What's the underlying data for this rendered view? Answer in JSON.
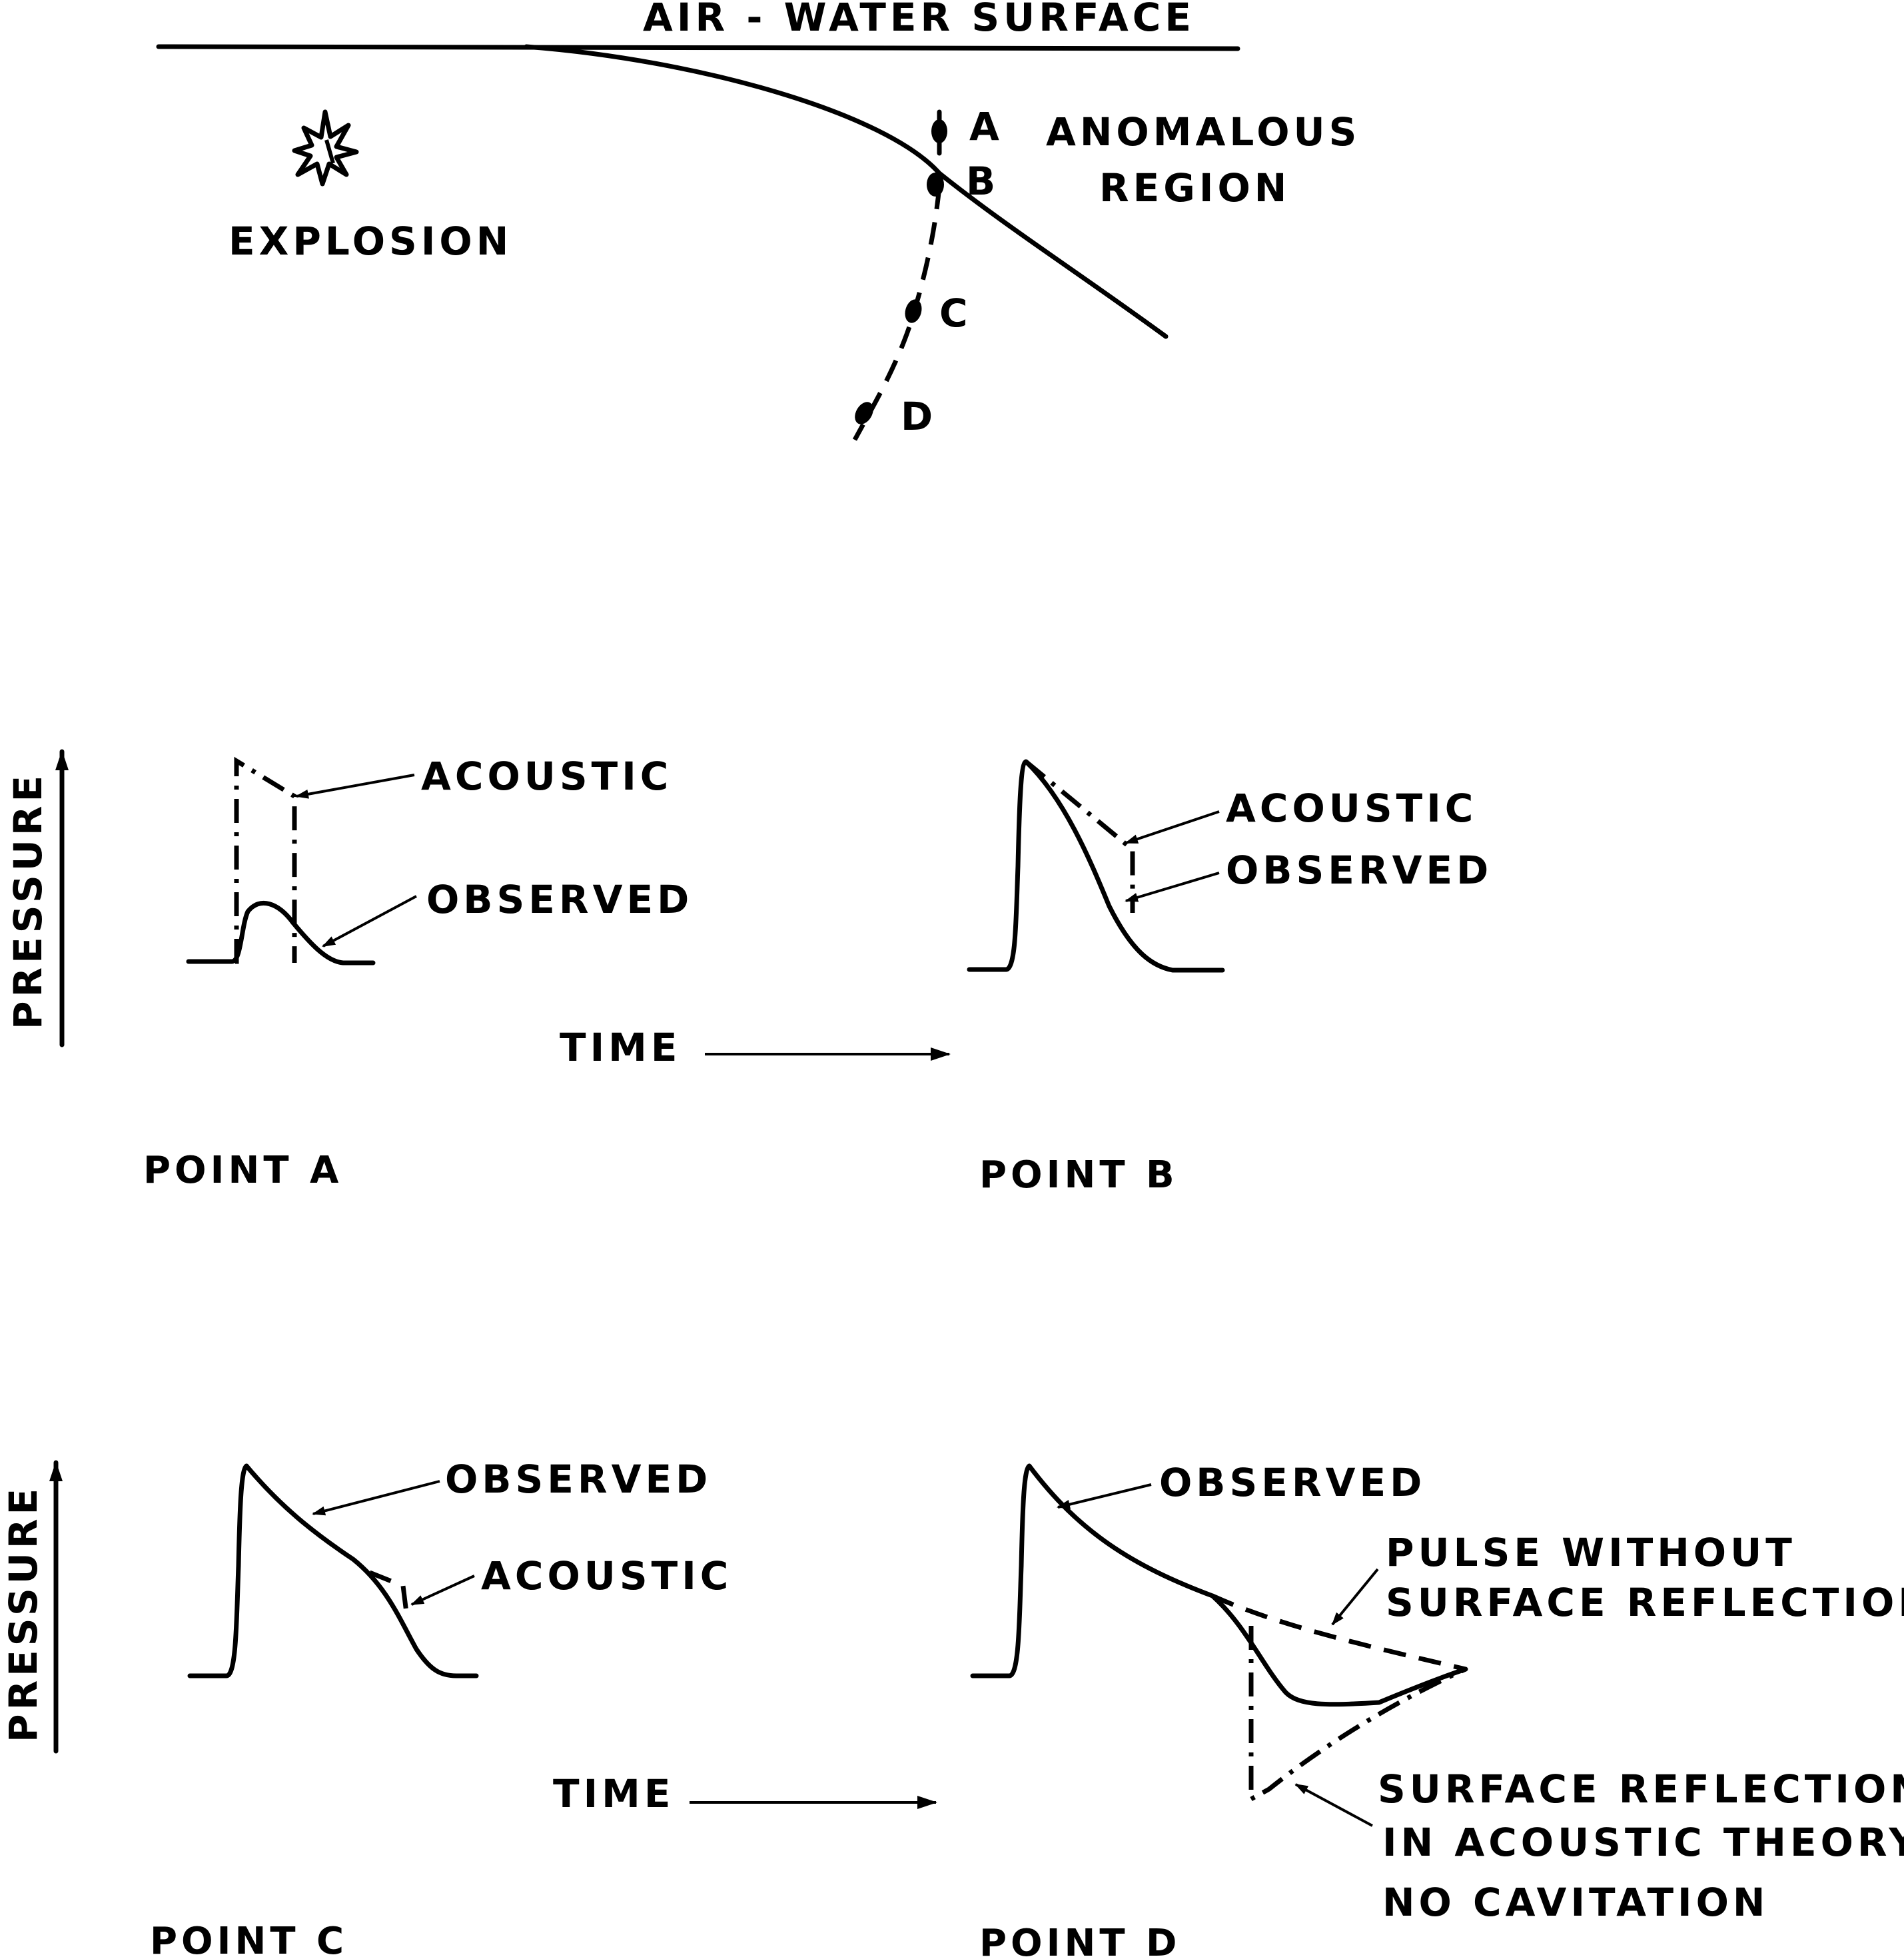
{
  "top": {
    "surface_label": "AIR - WATER SURFACE",
    "explosion_label": "EXPLOSION",
    "region_line1": "ANOMALOUS",
    "region_line2": "REGION",
    "point_labels": [
      "A",
      "B",
      "C",
      "D"
    ]
  },
  "axes": {
    "pressure": "PRESSURE",
    "time": "TIME"
  },
  "panels": {
    "a": {
      "title": "POINT A",
      "acoustic": "ACOUSTIC",
      "observed": "OBSERVED"
    },
    "b": {
      "title": "POINT B",
      "acoustic": "ACOUSTIC",
      "observed": "OBSERVED"
    },
    "c": {
      "title": "POINT C",
      "acoustic": "ACOUSTIC",
      "observed": "OBSERVED"
    },
    "d": {
      "title": "POINT D",
      "observed": "OBSERVED",
      "pulse_line1": "PULSE WITHOUT",
      "pulse_line2": "SURFACE REFLECTION",
      "reflection_line1": "SURFACE REFLECTION",
      "reflection_line2": "IN ACOUSTIC THEORY,",
      "reflection_line3": "NO CAVITATION"
    }
  }
}
